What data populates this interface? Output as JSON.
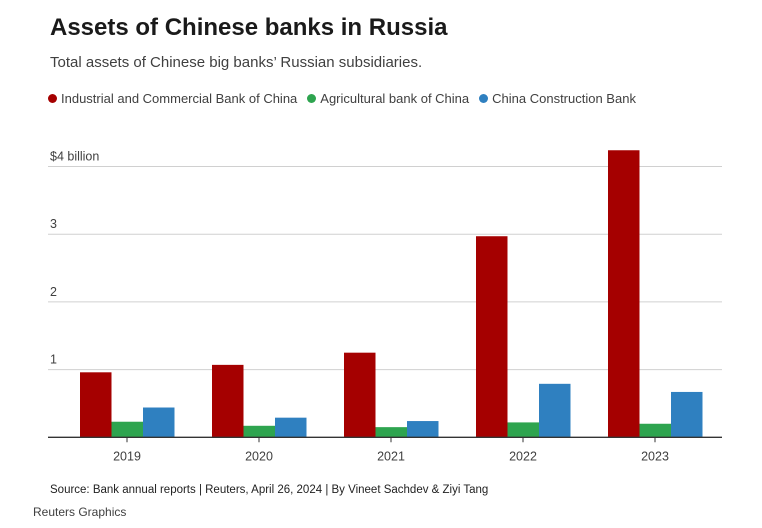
{
  "title": "Assets of Chinese banks in Russia",
  "subtitle": "Total assets of Chinese big banks’ Russian subsidiaries.",
  "source": "Source: Bank annual reports | Reuters, April 26, 2024 | By Vineet Sachdev & Ziyi Tang",
  "credit": "Reuters Graphics",
  "chart_data": {
    "type": "bar",
    "title": "Assets of Chinese banks in Russia",
    "xlabel": "",
    "ylabel": "",
    "categories": [
      "2019",
      "2020",
      "2021",
      "2022",
      "2023"
    ],
    "ylim": [
      0,
      4.3
    ],
    "yticks": [
      {
        "v": 1,
        "label": "1"
      },
      {
        "v": 2,
        "label": "2"
      },
      {
        "v": 3,
        "label": "3"
      },
      {
        "v": 4,
        "label": "$4 billion"
      }
    ],
    "grid": true,
    "legend": "top-left",
    "series": [
      {
        "name": "Industrial and Commercial Bank of China",
        "color": "#a50000",
        "values": [
          0.96,
          1.07,
          1.25,
          2.97,
          4.24
        ]
      },
      {
        "name": "Agricultural bank of China",
        "color": "#2ea44f",
        "values": [
          0.23,
          0.17,
          0.15,
          0.22,
          0.2
        ]
      },
      {
        "name": "China Construction Bank",
        "color": "#2f80c0",
        "values": [
          0.44,
          0.29,
          0.24,
          0.79,
          0.67
        ]
      }
    ]
  }
}
